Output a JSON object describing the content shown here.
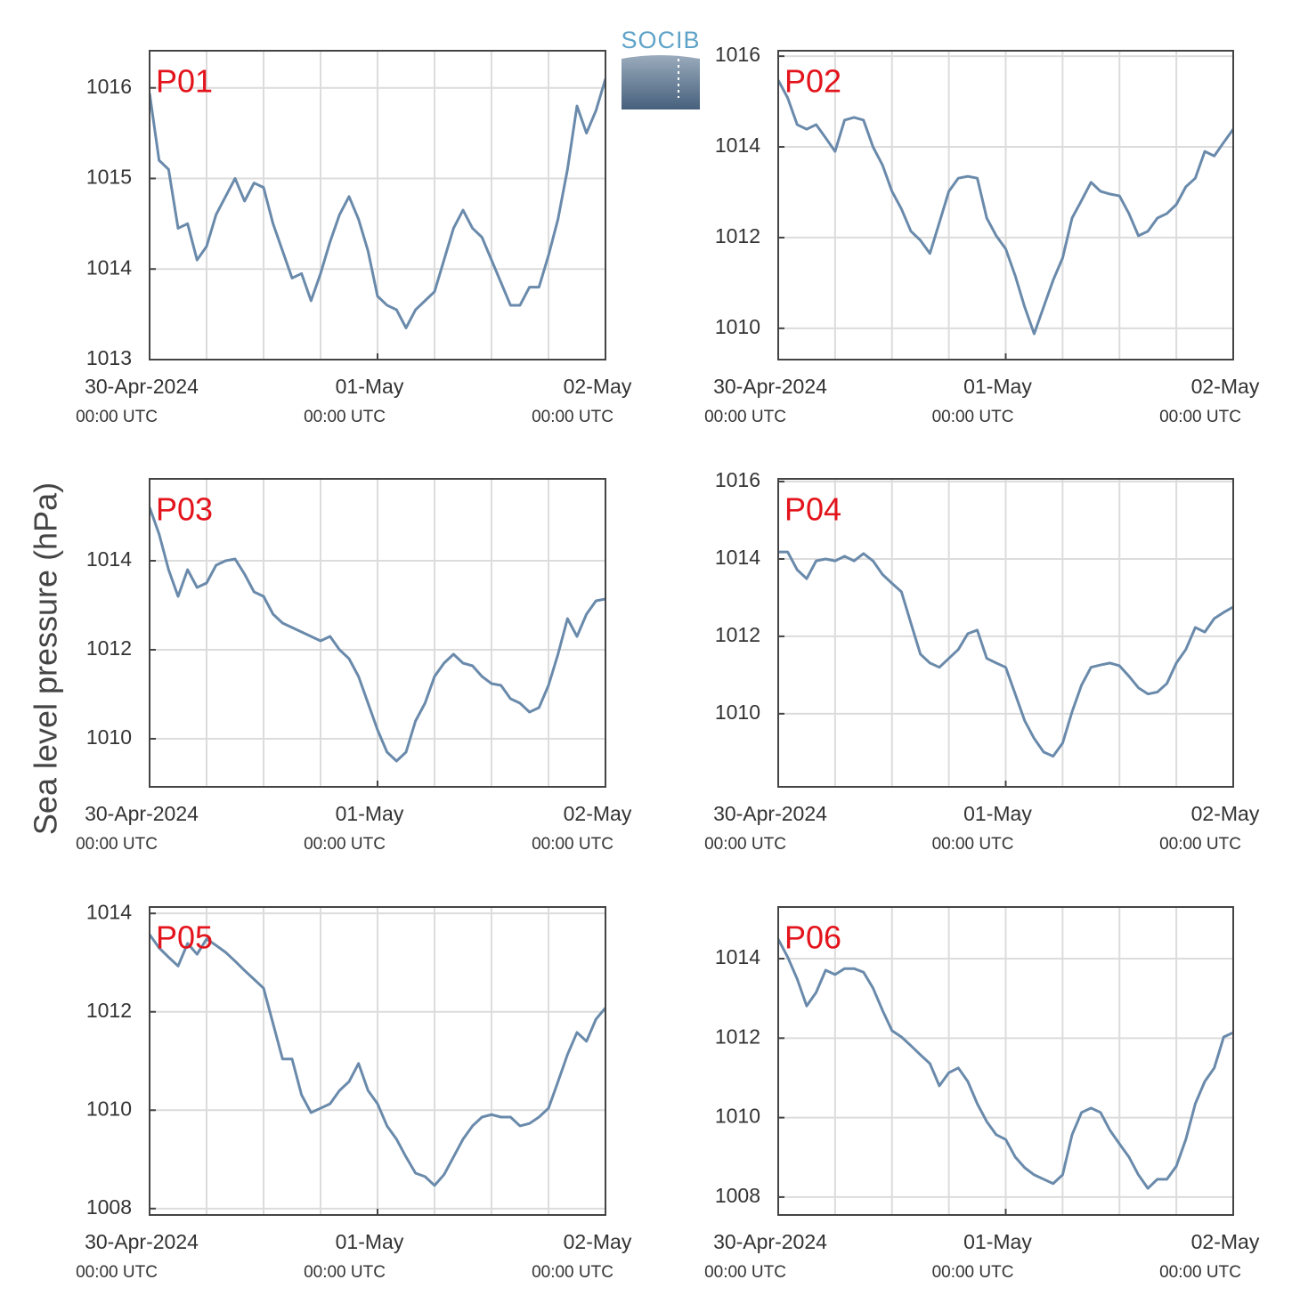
{
  "logo": "SOCIB",
  "ylabel": "Sea level pressure (hPa)",
  "chart_data": [
    {
      "type": "line",
      "title": "P01",
      "color": "#6a8aab",
      "grid": true,
      "x": [
        "2024-04-30T00:00",
        "2024-04-30T01:00",
        "2024-04-30T02:00",
        "2024-04-30T03:00",
        "2024-04-30T04:00",
        "2024-04-30T05:00",
        "2024-04-30T06:00",
        "2024-04-30T07:00",
        "2024-04-30T08:00",
        "2024-04-30T09:00",
        "2024-04-30T10:00",
        "2024-04-30T11:00",
        "2024-04-30T12:00",
        "2024-04-30T13:00",
        "2024-04-30T14:00",
        "2024-04-30T15:00",
        "2024-04-30T16:00",
        "2024-04-30T17:00",
        "2024-04-30T18:00",
        "2024-04-30T19:00",
        "2024-04-30T20:00",
        "2024-04-30T21:00",
        "2024-04-30T22:00",
        "2024-04-30T23:00",
        "2024-05-01T00:00",
        "2024-05-01T01:00",
        "2024-05-01T02:00",
        "2024-05-01T03:00",
        "2024-05-01T04:00",
        "2024-05-01T05:00",
        "2024-05-01T06:00",
        "2024-05-01T07:00",
        "2024-05-01T08:00",
        "2024-05-01T09:00",
        "2024-05-01T10:00",
        "2024-05-01T11:00",
        "2024-05-01T12:00",
        "2024-05-01T13:00",
        "2024-05-01T14:00",
        "2024-05-01T15:00",
        "2024-05-01T16:00",
        "2024-05-01T17:00",
        "2024-05-01T18:00",
        "2024-05-01T19:00",
        "2024-05-01T20:00",
        "2024-05-01T21:00",
        "2024-05-01T22:00",
        "2024-05-01T23:00",
        "2024-05-02T00:00"
      ],
      "values": [
        1015.94,
        1015.2,
        1015.1,
        1014.45,
        1014.5,
        1014.1,
        1014.25,
        1014.6,
        1014.8,
        1015.0,
        1014.75,
        1014.95,
        1014.9,
        1014.5,
        1014.2,
        1013.9,
        1013.95,
        1013.65,
        1013.95,
        1014.3,
        1014.6,
        1014.8,
        1014.55,
        1014.2,
        1013.7,
        1013.6,
        1013.55,
        1013.35,
        1013.55,
        1013.65,
        1013.75,
        1014.1,
        1014.45,
        1014.65,
        1014.45,
        1014.35,
        1014.1,
        1013.85,
        1013.6,
        1013.6,
        1013.8,
        1013.8,
        1014.15,
        1014.55,
        1015.1,
        1015.8,
        1015.5,
        1015.75,
        1016.1
      ],
      "xlim": [
        "2024-04-30T00:00",
        "2024-05-02T00:00"
      ],
      "xticks": [
        {
          "value": "2024-04-30T00:00",
          "label": [
            "30-Apr-2024",
            "00:00 UTC"
          ]
        },
        {
          "value": "2024-05-01T00:00",
          "label": [
            "01-May",
            "00:00 UTC"
          ]
        },
        {
          "value": "2024-05-02T00:00",
          "label": [
            "02-May",
            "00:00 UTC"
          ]
        }
      ],
      "xgrid": [
        "2024-04-30T06:00",
        "2024-04-30T12:00",
        "2024-04-30T18:00",
        "2024-05-01T00:00",
        "2024-05-01T06:00",
        "2024-05-01T12:00",
        "2024-05-01T18:00"
      ],
      "ylim": [
        1013,
        1016.41
      ],
      "yticks": [
        1013,
        1014,
        1015,
        1016
      ]
    },
    {
      "type": "line",
      "title": "P02",
      "color": "#6a8aab",
      "grid": true,
      "x": [
        "2024-04-30T00:00",
        "2024-04-30T01:00",
        "2024-04-30T02:00",
        "2024-04-30T03:00",
        "2024-04-30T04:00",
        "2024-04-30T05:00",
        "2024-04-30T06:00",
        "2024-04-30T07:00",
        "2024-04-30T08:00",
        "2024-04-30T09:00",
        "2024-04-30T10:00",
        "2024-04-30T11:00",
        "2024-04-30T12:00",
        "2024-04-30T13:00",
        "2024-04-30T14:00",
        "2024-04-30T15:00",
        "2024-04-30T16:00",
        "2024-04-30T17:00",
        "2024-04-30T18:00",
        "2024-04-30T19:00",
        "2024-04-30T20:00",
        "2024-04-30T21:00",
        "2024-04-30T22:00",
        "2024-04-30T23:00",
        "2024-05-01T00:00",
        "2024-05-01T01:00",
        "2024-05-01T02:00",
        "2024-05-01T03:00",
        "2024-05-01T04:00",
        "2024-05-01T05:00",
        "2024-05-01T06:00",
        "2024-05-01T07:00",
        "2024-05-01T08:00",
        "2024-05-01T09:00",
        "2024-05-01T10:00",
        "2024-05-01T11:00",
        "2024-05-01T12:00",
        "2024-05-01T13:00",
        "2024-05-01T14:00",
        "2024-05-01T15:00",
        "2024-05-01T16:00",
        "2024-05-01T17:00",
        "2024-05-01T18:00",
        "2024-05-01T19:00",
        "2024-05-01T20:00",
        "2024-05-01T21:00",
        "2024-05-01T22:00",
        "2024-05-01T23:00",
        "2024-05-02T00:00"
      ],
      "values": [
        1015.47,
        1015.08,
        1014.49,
        1014.39,
        1014.49,
        1014.2,
        1013.9,
        1014.59,
        1014.65,
        1014.59,
        1014.0,
        1013.6,
        1013.02,
        1012.63,
        1012.14,
        1011.94,
        1011.65,
        1012.33,
        1013.02,
        1013.31,
        1013.35,
        1013.31,
        1012.43,
        1012.04,
        1011.75,
        1011.16,
        1010.47,
        1009.88,
        1010.47,
        1011.06,
        1011.55,
        1012.43,
        1012.82,
        1013.22,
        1013.02,
        1012.96,
        1012.92,
        1012.53,
        1012.04,
        1012.14,
        1012.43,
        1012.53,
        1012.73,
        1013.12,
        1013.31,
        1013.9,
        1013.8,
        1014.1,
        1014.39
      ],
      "xlim": [
        "2024-04-30T00:00",
        "2024-05-02T00:00"
      ],
      "xticks": [
        {
          "value": "2024-04-30T00:00",
          "label": [
            "30-Apr-2024",
            "00:00 UTC"
          ]
        },
        {
          "value": "2024-05-01T00:00",
          "label": [
            "01-May",
            "00:00 UTC"
          ]
        },
        {
          "value": "2024-05-02T00:00",
          "label": [
            "02-May",
            "00:00 UTC"
          ]
        }
      ],
      "xgrid": [
        "2024-04-30T06:00",
        "2024-04-30T12:00",
        "2024-04-30T18:00",
        "2024-05-01T00:00",
        "2024-05-01T06:00",
        "2024-05-01T12:00",
        "2024-05-01T18:00"
      ],
      "ylim": [
        1009.31,
        1016.12
      ],
      "yticks": [
        1010,
        1012,
        1014,
        1016
      ]
    },
    {
      "type": "line",
      "title": "P03",
      "color": "#6a8aab",
      "grid": true,
      "x": [
        "2024-04-30T00:00",
        "2024-04-30T01:00",
        "2024-04-30T02:00",
        "2024-04-30T03:00",
        "2024-04-30T04:00",
        "2024-04-30T05:00",
        "2024-04-30T06:00",
        "2024-04-30T07:00",
        "2024-04-30T08:00",
        "2024-04-30T09:00",
        "2024-04-30T10:00",
        "2024-04-30T11:00",
        "2024-04-30T12:00",
        "2024-04-30T13:00",
        "2024-04-30T14:00",
        "2024-04-30T15:00",
        "2024-04-30T16:00",
        "2024-04-30T17:00",
        "2024-04-30T18:00",
        "2024-04-30T19:00",
        "2024-04-30T20:00",
        "2024-04-30T21:00",
        "2024-04-30T22:00",
        "2024-04-30T23:00",
        "2024-05-01T00:00",
        "2024-05-01T01:00",
        "2024-05-01T02:00",
        "2024-05-01T03:00",
        "2024-05-01T04:00",
        "2024-05-01T05:00",
        "2024-05-01T06:00",
        "2024-05-01T07:00",
        "2024-05-01T08:00",
        "2024-05-01T09:00",
        "2024-05-01T10:00",
        "2024-05-01T11:00",
        "2024-05-01T12:00",
        "2024-05-01T13:00",
        "2024-05-01T14:00",
        "2024-05-01T15:00",
        "2024-05-01T16:00",
        "2024-05-01T17:00",
        "2024-05-01T18:00",
        "2024-05-01T19:00",
        "2024-05-01T20:00",
        "2024-05-01T21:00",
        "2024-05-01T22:00",
        "2024-05-01T23:00",
        "2024-05-02T00:00"
      ],
      "values": [
        1015.2,
        1014.6,
        1013.8,
        1013.2,
        1013.8,
        1013.4,
        1013.5,
        1013.9,
        1014.0,
        1014.04,
        1013.7,
        1013.3,
        1013.2,
        1012.8,
        1012.6,
        1012.5,
        1012.4,
        1012.3,
        1012.2,
        1012.3,
        1012.0,
        1011.8,
        1011.4,
        1010.8,
        1010.2,
        1009.7,
        1009.5,
        1009.7,
        1010.4,
        1010.8,
        1011.4,
        1011.7,
        1011.9,
        1011.7,
        1011.64,
        1011.4,
        1011.24,
        1011.2,
        1010.9,
        1010.8,
        1010.6,
        1010.7,
        1011.2,
        1011.9,
        1012.7,
        1012.3,
        1012.8,
        1013.1,
        1013.14
      ],
      "xlim": [
        "2024-04-30T00:00",
        "2024-05-02T00:00"
      ],
      "xticks": [
        {
          "value": "2024-04-30T00:00",
          "label": [
            "30-Apr-2024",
            "00:00 UTC"
          ]
        },
        {
          "value": "2024-05-01T00:00",
          "label": [
            "01-May",
            "00:00 UTC"
          ]
        },
        {
          "value": "2024-05-02T00:00",
          "label": [
            "02-May",
            "00:00 UTC"
          ]
        }
      ],
      "xgrid": [
        "2024-04-30T06:00",
        "2024-04-30T12:00",
        "2024-04-30T18:00",
        "2024-05-01T00:00",
        "2024-05-01T06:00",
        "2024-05-01T12:00",
        "2024-05-01T18:00"
      ],
      "ylim": [
        1008.92,
        1015.84
      ],
      "yticks": [
        1010,
        1012,
        1014
      ]
    },
    {
      "type": "line",
      "title": "P04",
      "color": "#6a8aab",
      "grid": true,
      "x": [
        "2024-04-30T00:00",
        "2024-04-30T01:00",
        "2024-04-30T02:00",
        "2024-04-30T03:00",
        "2024-04-30T04:00",
        "2024-04-30T05:00",
        "2024-04-30T06:00",
        "2024-04-30T07:00",
        "2024-04-30T08:00",
        "2024-04-30T09:00",
        "2024-04-30T10:00",
        "2024-04-30T11:00",
        "2024-04-30T12:00",
        "2024-04-30T13:00",
        "2024-04-30T14:00",
        "2024-04-30T15:00",
        "2024-04-30T16:00",
        "2024-04-30T17:00",
        "2024-04-30T18:00",
        "2024-04-30T19:00",
        "2024-04-30T20:00",
        "2024-04-30T21:00",
        "2024-04-30T22:00",
        "2024-04-30T23:00",
        "2024-05-01T00:00",
        "2024-05-01T01:00",
        "2024-05-01T02:00",
        "2024-05-01T03:00",
        "2024-05-01T04:00",
        "2024-05-01T05:00",
        "2024-05-01T06:00",
        "2024-05-01T07:00",
        "2024-05-01T08:00",
        "2024-05-01T09:00",
        "2024-05-01T10:00",
        "2024-05-01T11:00",
        "2024-05-01T12:00",
        "2024-05-01T13:00",
        "2024-05-01T14:00",
        "2024-05-01T15:00",
        "2024-05-01T16:00",
        "2024-05-01T17:00",
        "2024-05-01T18:00",
        "2024-05-01T19:00",
        "2024-05-01T20:00",
        "2024-05-01T21:00",
        "2024-05-01T22:00",
        "2024-05-01T23:00",
        "2024-05-02T00:00"
      ],
      "values": [
        1014.18,
        1014.18,
        1013.72,
        1013.49,
        1013.95,
        1014.0,
        1013.95,
        1014.07,
        1013.95,
        1014.14,
        1013.95,
        1013.6,
        1013.37,
        1013.15,
        1012.34,
        1011.54,
        1011.31,
        1011.2,
        1011.43,
        1011.66,
        1012.07,
        1012.16,
        1011.43,
        1011.31,
        1011.2,
        1010.51,
        1009.82,
        1009.36,
        1009.01,
        1008.9,
        1009.24,
        1010.05,
        1010.74,
        1011.2,
        1011.26,
        1011.31,
        1011.24,
        1010.97,
        1010.67,
        1010.51,
        1010.56,
        1010.78,
        1011.31,
        1011.66,
        1012.23,
        1012.11,
        1012.46,
        1012.62,
        1012.76
      ],
      "xlim": [
        "2024-04-30T00:00",
        "2024-05-02T00:00"
      ],
      "xticks": [
        {
          "value": "2024-04-30T00:00",
          "label": [
            "30-Apr-2024",
            "00:00 UTC"
          ]
        },
        {
          "value": "2024-05-01T00:00",
          "label": [
            "01-May",
            "00:00 UTC"
          ]
        },
        {
          "value": "2024-05-02T00:00",
          "label": [
            "02-May",
            "00:00 UTC"
          ]
        }
      ],
      "xgrid": [
        "2024-04-30T06:00",
        "2024-04-30T12:00",
        "2024-04-30T18:00",
        "2024-05-01T00:00",
        "2024-05-01T06:00",
        "2024-05-01T12:00",
        "2024-05-01T18:00"
      ],
      "ylim": [
        1008.11,
        1016.07
      ],
      "yticks": [
        1010,
        1012,
        1014,
        1016
      ]
    },
    {
      "type": "line",
      "title": "P05",
      "color": "#6a8aab",
      "grid": true,
      "x": [
        "2024-04-30T00:00",
        "2024-04-30T01:00",
        "2024-04-30T02:00",
        "2024-04-30T03:00",
        "2024-04-30T04:00",
        "2024-04-30T05:00",
        "2024-04-30T06:00",
        "2024-04-30T07:00",
        "2024-04-30T08:00",
        "2024-04-30T09:00",
        "2024-04-30T10:00",
        "2024-04-30T11:00",
        "2024-04-30T12:00",
        "2024-04-30T13:00",
        "2024-04-30T14:00",
        "2024-04-30T15:00",
        "2024-04-30T16:00",
        "2024-04-30T17:00",
        "2024-04-30T18:00",
        "2024-04-30T19:00",
        "2024-04-30T20:00",
        "2024-04-30T21:00",
        "2024-04-30T22:00",
        "2024-04-30T23:00",
        "2024-05-01T00:00",
        "2024-05-01T01:00",
        "2024-05-01T02:00",
        "2024-05-01T03:00",
        "2024-05-01T04:00",
        "2024-05-01T05:00",
        "2024-05-01T06:00",
        "2024-05-01T07:00",
        "2024-05-01T08:00",
        "2024-05-01T09:00",
        "2024-05-01T10:00",
        "2024-05-01T11:00",
        "2024-05-01T12:00",
        "2024-05-01T13:00",
        "2024-05-01T14:00",
        "2024-05-01T15:00",
        "2024-05-01T16:00",
        "2024-05-01T17:00",
        "2024-05-01T18:00",
        "2024-05-01T19:00",
        "2024-05-01T20:00",
        "2024-05-01T21:00",
        "2024-05-01T22:00",
        "2024-05-01T23:00",
        "2024-05-02T00:00"
      ],
      "values": [
        1013.57,
        1013.3,
        1013.11,
        1012.93,
        1013.39,
        1013.17,
        1013.48,
        1013.35,
        1013.21,
        1013.03,
        1012.84,
        1012.66,
        1012.48,
        1011.76,
        1011.04,
        1011.04,
        1010.31,
        1009.95,
        1010.04,
        1010.13,
        1010.4,
        1010.58,
        1010.95,
        1010.4,
        1010.13,
        1009.68,
        1009.41,
        1009.05,
        1008.72,
        1008.65,
        1008.47,
        1008.69,
        1009.05,
        1009.41,
        1009.68,
        1009.86,
        1009.91,
        1009.86,
        1009.86,
        1009.68,
        1009.73,
        1009.86,
        1010.04,
        1010.58,
        1011.13,
        1011.58,
        1011.4,
        1011.85,
        1012.08
      ],
      "xlim": [
        "2024-04-30T00:00",
        "2024-05-02T00:00"
      ],
      "xticks": [
        {
          "value": "2024-04-30T00:00",
          "label": [
            "30-Apr-2024",
            "00:00 UTC"
          ]
        },
        {
          "value": "2024-05-01T00:00",
          "label": [
            "01-May",
            "00:00 UTC"
          ]
        },
        {
          "value": "2024-05-02T00:00",
          "label": [
            "02-May",
            "00:00 UTC"
          ]
        }
      ],
      "xgrid": [
        "2024-04-30T06:00",
        "2024-04-30T12:00",
        "2024-04-30T18:00",
        "2024-05-01T00:00",
        "2024-05-01T06:00",
        "2024-05-01T12:00",
        "2024-05-01T18:00"
      ],
      "ylim": [
        1007.87,
        1014.13
      ],
      "yticks": [
        1008,
        1010,
        1012,
        1014
      ]
    },
    {
      "type": "line",
      "title": "P06",
      "color": "#6a8aab",
      "grid": true,
      "x": [
        "2024-04-30T00:00",
        "2024-04-30T01:00",
        "2024-04-30T02:00",
        "2024-04-30T03:00",
        "2024-04-30T04:00",
        "2024-04-30T05:00",
        "2024-04-30T06:00",
        "2024-04-30T07:00",
        "2024-04-30T08:00",
        "2024-04-30T09:00",
        "2024-04-30T10:00",
        "2024-04-30T11:00",
        "2024-04-30T12:00",
        "2024-04-30T13:00",
        "2024-04-30T14:00",
        "2024-04-30T15:00",
        "2024-04-30T16:00",
        "2024-04-30T17:00",
        "2024-04-30T18:00",
        "2024-04-30T19:00",
        "2024-04-30T20:00",
        "2024-04-30T21:00",
        "2024-04-30T22:00",
        "2024-04-30T23:00",
        "2024-05-01T00:00",
        "2024-05-01T01:00",
        "2024-05-01T02:00",
        "2024-05-01T03:00",
        "2024-05-01T04:00",
        "2024-05-01T05:00",
        "2024-05-01T06:00",
        "2024-05-01T07:00",
        "2024-05-01T08:00",
        "2024-05-01T09:00",
        "2024-05-01T10:00",
        "2024-05-01T11:00",
        "2024-05-01T12:00",
        "2024-05-01T13:00",
        "2024-05-01T14:00",
        "2024-05-01T15:00",
        "2024-05-01T16:00",
        "2024-05-01T17:00",
        "2024-05-01T18:00",
        "2024-05-01T19:00",
        "2024-05-01T20:00",
        "2024-05-01T21:00",
        "2024-05-01T22:00",
        "2024-05-01T23:00",
        "2024-05-02T00:00"
      ],
      "values": [
        1014.49,
        1014.04,
        1013.49,
        1012.81,
        1013.15,
        1013.71,
        1013.6,
        1013.75,
        1013.75,
        1013.66,
        1013.26,
        1012.7,
        1012.19,
        1012.03,
        1011.81,
        1011.58,
        1011.36,
        1010.8,
        1011.13,
        1011.25,
        1010.91,
        1010.35,
        1009.9,
        1009.57,
        1009.45,
        1009.01,
        1008.74,
        1008.56,
        1008.45,
        1008.34,
        1008.56,
        1009.57,
        1010.13,
        1010.24,
        1010.13,
        1009.68,
        1009.34,
        1009.01,
        1008.56,
        1008.22,
        1008.45,
        1008.45,
        1008.78,
        1009.45,
        1010.35,
        1010.91,
        1011.25,
        1012.03,
        1012.14
      ],
      "xlim": [
        "2024-04-30T00:00",
        "2024-05-02T00:00"
      ],
      "xticks": [
        {
          "value": "2024-04-30T00:00",
          "label": [
            "30-Apr-2024",
            "00:00 UTC"
          ]
        },
        {
          "value": "2024-05-01T00:00",
          "label": [
            "01-May",
            "00:00 UTC"
          ]
        },
        {
          "value": "2024-05-02T00:00",
          "label": [
            "02-May",
            "00:00 UTC"
          ]
        }
      ],
      "xgrid": [
        "2024-04-30T06:00",
        "2024-04-30T12:00",
        "2024-04-30T18:00",
        "2024-05-01T00:00",
        "2024-05-01T06:00",
        "2024-05-01T12:00",
        "2024-05-01T18:00"
      ],
      "ylim": [
        1007.55,
        1015.3
      ],
      "yticks": [
        1008,
        1010,
        1012,
        1014
      ]
    }
  ]
}
